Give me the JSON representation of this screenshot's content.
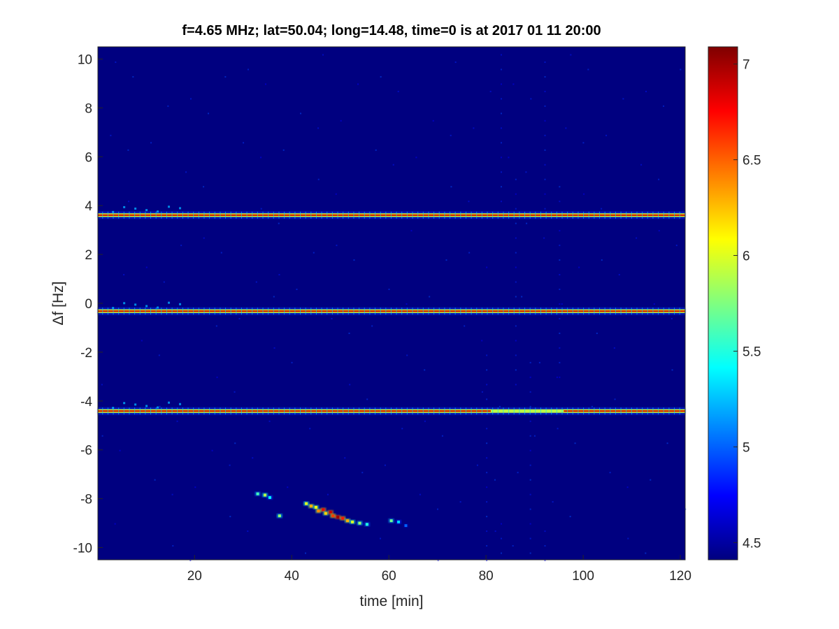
{
  "chart_data": {
    "type": "heatmap",
    "title": "f=4.65 MHz;  lat=50.04; long=14.48, time=0 is at 2017 01 11 20:00",
    "xlabel": "time [min]",
    "ylabel": "Δf [Hz]",
    "xlim": [
      0.1,
      121
    ],
    "ylim": [
      -10.5,
      10.5
    ],
    "xticks": [
      "20",
      "40",
      "60",
      "80",
      "100",
      "120"
    ],
    "xtick_values": [
      20,
      40,
      60,
      80,
      100,
      120
    ],
    "yticks": [
      "-10",
      "-8",
      "-6",
      "-4",
      "-2",
      "0",
      "2",
      "4",
      "6",
      "8",
      "10"
    ],
    "ytick_values": [
      -10,
      -8,
      -6,
      -4,
      -2,
      0,
      2,
      4,
      6,
      8,
      10
    ],
    "colormap": "jet",
    "colorbar": {
      "range": [
        4.41,
        7.09
      ],
      "ticks": [
        "4.5",
        "5",
        "5.5",
        "6",
        "6.5",
        "7"
      ],
      "tick_values": [
        4.5,
        5,
        5.5,
        6,
        6.5,
        7
      ]
    },
    "background_value": 4.41,
    "grid": false,
    "lines": [
      {
        "df": 3.61,
        "t_start": 0.1,
        "t_end": 121,
        "value": 6.9
      },
      {
        "df": -0.32,
        "t_start": 0.1,
        "t_end": 121,
        "value": 6.9
      },
      {
        "df": -4.41,
        "t_start": 0.1,
        "t_end": 121,
        "value": 6.9,
        "weak_segment": {
          "t_start": 81,
          "t_end": 96,
          "value": 5.9
        }
      }
    ],
    "blob_points": [
      [
        33,
        -7.8,
        5.6
      ],
      [
        34.5,
        -7.85,
        5.9
      ],
      [
        35.5,
        -7.95,
        5.4
      ],
      [
        37.5,
        -8.7,
        5.8
      ],
      [
        43,
        -8.2,
        6.0
      ],
      [
        44,
        -8.3,
        6.3
      ],
      [
        45,
        -8.35,
        6.1
      ],
      [
        45.5,
        -8.5,
        6.4
      ],
      [
        46.5,
        -8.45,
        6.8
      ],
      [
        47,
        -8.6,
        6.2
      ],
      [
        48,
        -8.55,
        6.9
      ],
      [
        48.5,
        -8.7,
        6.6
      ],
      [
        49.5,
        -8.75,
        7.0
      ],
      [
        50.5,
        -8.8,
        6.7
      ],
      [
        51.5,
        -8.9,
        6.3
      ],
      [
        52.5,
        -8.95,
        6.0
      ],
      [
        54,
        -9.0,
        5.8
      ],
      [
        55.5,
        -9.05,
        5.5
      ],
      [
        60.5,
        -8.9,
        5.7
      ],
      [
        62,
        -8.95,
        5.3
      ],
      [
        63.5,
        -9.1,
        5.0
      ]
    ]
  }
}
